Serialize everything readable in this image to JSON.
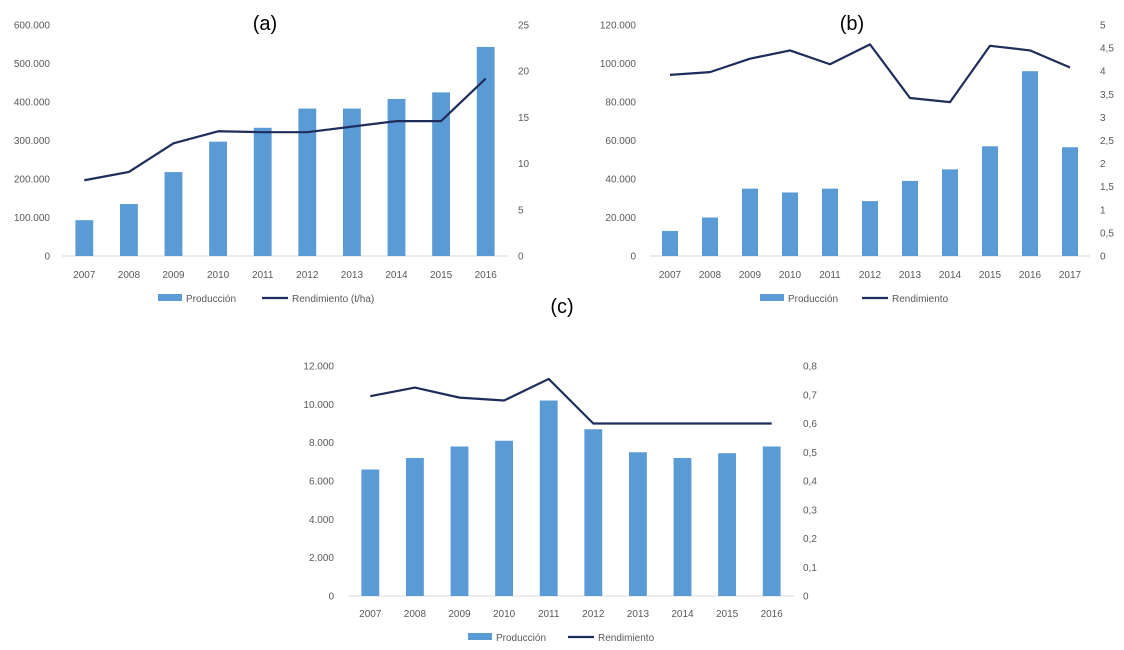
{
  "colors": {
    "bar": "#5b9bd5",
    "line": "#1f2d5c",
    "axis": "#d9d9d9",
    "text": "#595959"
  },
  "chart_data": [
    {
      "panel": "(a)",
      "type": "bar+line",
      "categories": [
        "2007",
        "2008",
        "2009",
        "2010",
        "2011",
        "2012",
        "2013",
        "2014",
        "2015",
        "2016"
      ],
      "series": [
        {
          "name": "Producción",
          "type": "bar",
          "axis": "left",
          "values": [
            93000,
            135000,
            218000,
            297000,
            333000,
            383000,
            383000,
            408000,
            425000,
            543000
          ]
        },
        {
          "name": "Rendimiento (t/ha)",
          "type": "line",
          "axis": "right",
          "values": [
            8.2,
            9.1,
            12.2,
            13.5,
            13.4,
            13.4,
            14.0,
            14.6,
            14.6,
            19.2
          ]
        }
      ],
      "y_left": {
        "min": 0,
        "max": 600000,
        "ticks": [
          "0",
          "100.000",
          "200.000",
          "300.000",
          "400.000",
          "500.000",
          "600.000"
        ]
      },
      "y_right": {
        "min": 0,
        "max": 25,
        "ticks": [
          "0",
          "5",
          "10",
          "15",
          "20",
          "25"
        ]
      },
      "grid": false,
      "legend_position": "bottom"
    },
    {
      "panel": "(b)",
      "type": "bar+line",
      "categories": [
        "2007",
        "2008",
        "2009",
        "2010",
        "2011",
        "2012",
        "2013",
        "2014",
        "2015",
        "2016",
        "2017"
      ],
      "series": [
        {
          "name": "Producción",
          "type": "bar",
          "axis": "left",
          "values": [
            13000,
            20000,
            35000,
            33000,
            35000,
            28500,
            39000,
            45000,
            57000,
            96000,
            56500
          ]
        },
        {
          "name": "Rendimiento",
          "type": "line",
          "axis": "right",
          "values": [
            3.92,
            3.98,
            4.27,
            4.45,
            4.15,
            4.58,
            3.42,
            3.33,
            4.55,
            4.45,
            4.08
          ]
        }
      ],
      "y_left": {
        "min": 0,
        "max": 120000,
        "ticks": [
          "0",
          "20.000",
          "40.000",
          "60.000",
          "80.000",
          "100.000",
          "120.000"
        ]
      },
      "y_right": {
        "min": 0,
        "max": 5,
        "ticks": [
          "0",
          "0,5",
          "1",
          "1,5",
          "2",
          "2,5",
          "3",
          "3,5",
          "4",
          "4,5",
          "5"
        ]
      },
      "grid": false,
      "legend_position": "bottom"
    },
    {
      "panel": "(c)",
      "type": "bar+line",
      "categories": [
        "2007",
        "2008",
        "2009",
        "2010",
        "2011",
        "2012",
        "2013",
        "2014",
        "2015",
        "2016"
      ],
      "series": [
        {
          "name": "Producción",
          "type": "bar",
          "axis": "left",
          "values": [
            6600,
            7200,
            7800,
            8100,
            10200,
            8700,
            7500,
            7200,
            7450,
            7800
          ]
        },
        {
          "name": "Rendimiento",
          "type": "line",
          "axis": "right",
          "values": [
            0.695,
            0.725,
            0.69,
            0.68,
            0.755,
            0.6,
            0.6,
            0.6,
            0.6,
            0.6
          ]
        }
      ],
      "y_left": {
        "min": 0,
        "max": 12000,
        "ticks": [
          "0",
          "2.000",
          "4.000",
          "6.000",
          "8.000",
          "10.000",
          "12.000"
        ]
      },
      "y_right": {
        "min": 0,
        "max": 0.8,
        "ticks": [
          "0",
          "0,1",
          "0,2",
          "0,3",
          "0,4",
          "0,5",
          "0,6",
          "0,7",
          "0,8"
        ]
      },
      "grid": false,
      "legend_position": "bottom"
    }
  ]
}
